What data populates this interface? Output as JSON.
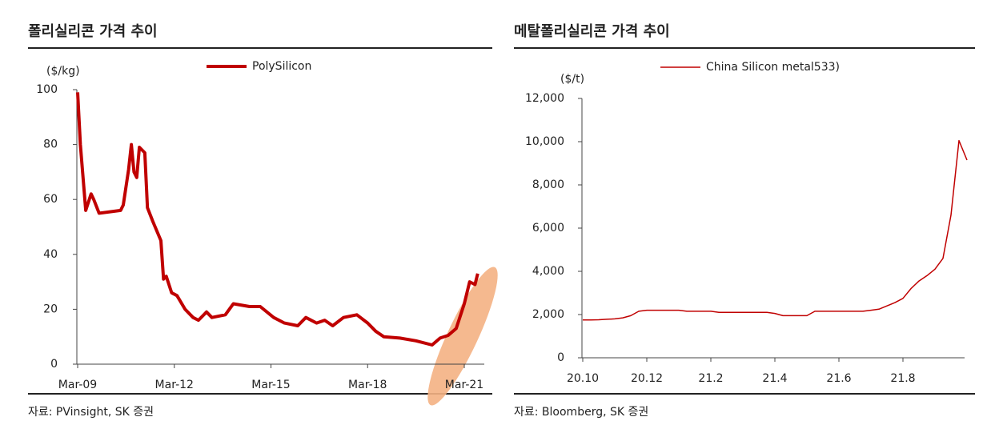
{
  "chart_data": [
    {
      "type": "line",
      "title": "폴리실리콘 가격 추이",
      "y_label": "($/kg)",
      "source": "자료: PVinsight, SK 증권",
      "x": [
        "Mar-09",
        "Apr-09",
        "Jun-09",
        "Aug-09",
        "Sep-09",
        "Nov-09",
        "Jul-10",
        "Aug-10",
        "Oct-10",
        "Nov-10",
        "Dec-10",
        "Jan-11",
        "Feb-11",
        "Apr-11",
        "May-11",
        "Jul-11",
        "Oct-11",
        "Nov-11",
        "Dec-11",
        "Feb-12",
        "Apr-12",
        "Jul-12",
        "Oct-12",
        "Dec-12",
        "Mar-13",
        "May-13",
        "Oct-13",
        "Jan-14",
        "Jul-14",
        "Nov-14",
        "Apr-15",
        "Aug-15",
        "Jan-16",
        "Apr-16",
        "Aug-16",
        "Nov-16",
        "Feb-17",
        "Jun-17",
        "Nov-17",
        "Mar-18",
        "Jun-18",
        "Sep-18",
        "Mar-19",
        "Sep-19",
        "Mar-20",
        "Jun-20",
        "Sep-20",
        "Dec-20",
        "Mar-21",
        "May-21",
        "Jul-21",
        "Aug-21"
      ],
      "series": [
        {
          "name": "PolySilicon",
          "color": "#c00000",
          "values": [
            99,
            80,
            56,
            62,
            60,
            55,
            56,
            58,
            71,
            80,
            70,
            68,
            79,
            77,
            57,
            52,
            45,
            31,
            32,
            26,
            25,
            20,
            17,
            16,
            19,
            17,
            18,
            22,
            21,
            21,
            17,
            15,
            14,
            17,
            15,
            16,
            14,
            17,
            18,
            15,
            12,
            10,
            9.5,
            8.5,
            7,
            9.5,
            10.5,
            13,
            22,
            30,
            29,
            33
          ]
        }
      ],
      "xticks": [
        "Mar-09",
        "Mar-12",
        "Mar-15",
        "Mar-18",
        "Mar-21"
      ],
      "ylim": [
        0,
        100
      ],
      "yticks": [
        0,
        20,
        40,
        60,
        80,
        100
      ]
    },
    {
      "type": "line",
      "title": "메탈폴리실리콘 가격 추이",
      "y_label": "($/t)",
      "source": "자료: Bloomberg, SK 증권",
      "categories": [
        "20.10",
        null,
        null,
        null,
        null,
        null,
        null,
        null,
        "20.12",
        null,
        null,
        null,
        null,
        null,
        null,
        null,
        "21.2",
        null,
        null,
        null,
        null,
        null,
        null,
        null,
        "21.4",
        null,
        null,
        null,
        null,
        null,
        null,
        null,
        "21.6",
        null,
        null,
        null,
        null,
        null,
        null,
        null,
        "21.8",
        null,
        null,
        null,
        null,
        null,
        null,
        null,
        null
      ],
      "series": [
        {
          "name": "China Silicon metal533)",
          "color": "#c00000",
          "values": [
            1750,
            1750,
            1760,
            1780,
            1800,
            1850,
            1950,
            2150,
            2200,
            2200,
            2200,
            2200,
            2200,
            2150,
            2150,
            2150,
            2150,
            2100,
            2100,
            2100,
            2100,
            2100,
            2100,
            2100,
            2050,
            1950,
            1950,
            1950,
            1950,
            2150,
            2150,
            2150,
            2150,
            2150,
            2150,
            2150,
            2200,
            2250,
            2400,
            2550,
            2750,
            3200,
            3550,
            3800,
            4100,
            4600,
            6600,
            10050,
            9150
          ]
        }
      ],
      "ylim": [
        0,
        12000
      ],
      "yticks": [
        0,
        {
          "value": 2000,
          "label": "2,000"
        },
        {
          "value": 4000,
          "label": "4,000"
        },
        {
          "value": 6000,
          "label": "6,000"
        },
        {
          "value": 8000,
          "label": "8,000"
        },
        {
          "value": 10000,
          "label": "10,000"
        },
        {
          "value": 12000,
          "label": "12,000"
        }
      ]
    }
  ]
}
